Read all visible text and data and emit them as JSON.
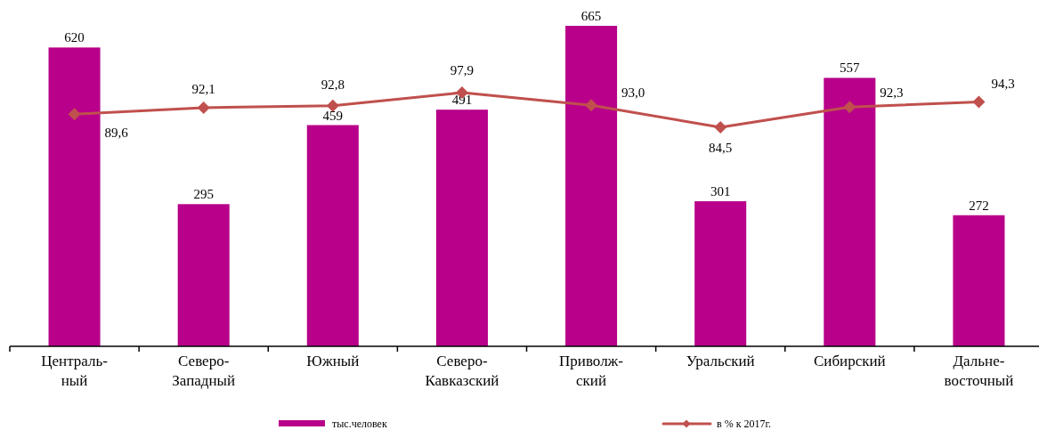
{
  "chart_data": {
    "type": "bar",
    "categories": [
      "Централь-\nный",
      "Северо-\nЗападный",
      "Южный",
      "Северо-\nКавказский",
      "Приволж-\nский",
      "Уральский",
      "Сибирский",
      "Дальне-\nвосточный"
    ],
    "series": [
      {
        "name": "тыс.человек",
        "color": "#b8008a",
        "values": [
          620,
          295,
          459,
          491,
          665,
          301,
          557,
          272
        ],
        "value_labels": [
          "620",
          "295",
          "459",
          "491",
          "665",
          "301",
          "557",
          "272"
        ]
      },
      {
        "name": "в % к 2017г.",
        "type": "line",
        "axis": "y2",
        "color": "#c0504d",
        "values": [
          89.6,
          92.1,
          92.8,
          97.9,
          93.0,
          84.5,
          92.3,
          94.3
        ],
        "value_labels": [
          "89,6",
          "92,1",
          "92,8",
          "97,9",
          "93,0",
          "84,5",
          "92,3",
          "94,3"
        ]
      }
    ],
    "tick_labels": "x",
    "legend": "bottom",
    "marker": "diamond",
    "line_style": "solid"
  }
}
